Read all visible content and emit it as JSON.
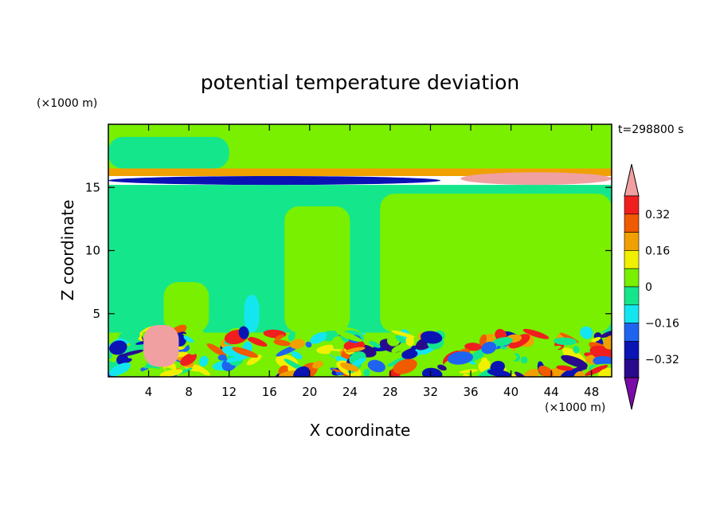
{
  "chart_data": {
    "type": "heatmap",
    "title": "potential temperature deviation",
    "xlabel": "X coordinate",
    "ylabel": "Z coordinate",
    "x_unit": "(×1000 m)",
    "y_unit": "(×1000 m)",
    "time_label": "t=298800 s",
    "xlim": [
      0,
      50
    ],
    "ylim": [
      0,
      20
    ],
    "x_ticks": [
      4,
      8,
      12,
      16,
      20,
      24,
      28,
      32,
      36,
      40,
      44,
      48
    ],
    "x_tick_labels": [
      "4",
      "8",
      "12",
      "16",
      "20",
      "24",
      "28",
      "32",
      "36",
      "40",
      "44",
      "48"
    ],
    "y_ticks": [
      5,
      10,
      15
    ],
    "y_tick_labels": [
      "5",
      "10",
      "15"
    ],
    "colorbar": {
      "levels": [
        -0.4,
        -0.32,
        -0.24,
        -0.16,
        -0.08,
        0,
        0.08,
        0.16,
        0.24,
        0.32,
        0.4
      ],
      "labels": [
        "0.32",
        "0.16",
        "0",
        "−0.16",
        "−0.32"
      ],
      "label_values": [
        0.32,
        0.16,
        0,
        -0.16,
        -0.32
      ],
      "colors": [
        "#7b0aa8",
        "#2a0a8c",
        "#0a14b4",
        "#1e64f0",
        "#14e6f0",
        "#14e68c",
        "#78f000",
        "#f0f000",
        "#f0a000",
        "#f05a00",
        "#f01e1e",
        "#f0a0a0"
      ],
      "extend": "both"
    },
    "regions": [
      {
        "name": "upper-background",
        "x": [
          0,
          50
        ],
        "z": [
          16.5,
          20
        ],
        "value": 0.02
      },
      {
        "name": "upper-cool-patch",
        "x": [
          0,
          12
        ],
        "z": [
          16.5,
          19
        ],
        "value": -0.02
      },
      {
        "name": "tropopause-warm-band",
        "x": [
          0,
          50
        ],
        "z": [
          15.9,
          16.5
        ],
        "value": 0.2
      },
      {
        "name": "tropopause-cold-core",
        "x": [
          0,
          33
        ],
        "z": [
          15.2,
          15.9
        ],
        "value": -0.3
      },
      {
        "name": "tropopause-warm-east",
        "x": [
          35,
          50
        ],
        "z": [
          15.2,
          16.2
        ],
        "value": 0.4
      },
      {
        "name": "mid-troposphere",
        "x": [
          0,
          50
        ],
        "z": [
          3.5,
          15.2
        ],
        "value": -0.02
      },
      {
        "name": "warm-column-1",
        "x": [
          5.5,
          10
        ],
        "z": [
          3.5,
          7.5
        ],
        "value": 0.03
      },
      {
        "name": "warm-column-2",
        "x": [
          17.5,
          24
        ],
        "z": [
          3.5,
          13.5
        ],
        "value": 0.03
      },
      {
        "name": "warm-column-3",
        "x": [
          27,
          50
        ],
        "z": [
          3.5,
          14.5
        ],
        "value": 0.03
      },
      {
        "name": "cool-column",
        "x": [
          13.5,
          15
        ],
        "z": [
          3.5,
          6.5
        ],
        "value": -0.1
      },
      {
        "name": "boundary-layer-turbulence",
        "x": [
          0,
          50
        ],
        "z": [
          0,
          3.5
        ],
        "value": "mixed"
      },
      {
        "name": "warm-plume",
        "x": [
          3.5,
          7
        ],
        "z": [
          0.8,
          4.1
        ],
        "value": 0.4
      }
    ]
  }
}
